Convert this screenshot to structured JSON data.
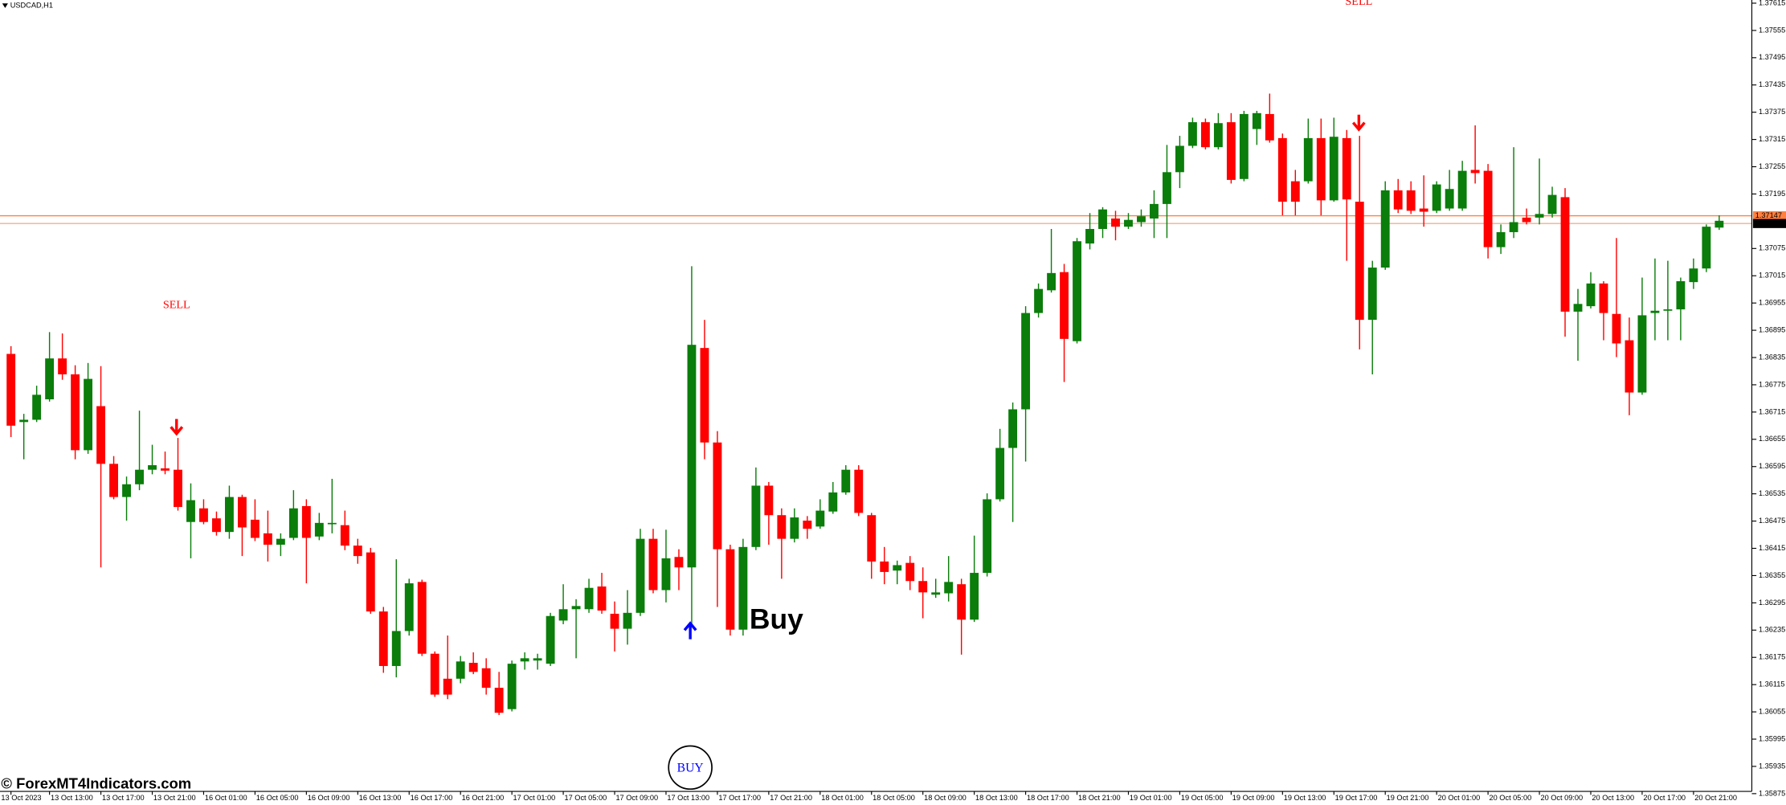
{
  "chart_data": {
    "type": "candlestick",
    "title": "USDCAD,H1",
    "watermark": "© ForexMT4Indicators.com",
    "annotations": [
      "SELL",
      "SELL",
      "Buy",
      "BUY"
    ],
    "up_color": "#0a7d0a",
    "down_color": "#ff0000",
    "grid": false,
    "ylim": [
      1.3588,
      1.37622
    ],
    "yticks": [
      1.37615,
      1.37555,
      1.37495,
      1.37435,
      1.37375,
      1.37315,
      1.37255,
      1.37195,
      1.37075,
      1.37015,
      1.36955,
      1.36895,
      1.36835,
      1.36775,
      1.36715,
      1.36655,
      1.36595,
      1.36535,
      1.36475,
      1.36415,
      1.36355,
      1.36295,
      1.36235,
      1.36175,
      1.36115,
      1.36055,
      1.35995,
      1.35935,
      1.35875
    ],
    "hlines": [
      {
        "value": 1.37147,
        "label": "1.37147",
        "color": "#ff8040"
      },
      {
        "value": 1.3713,
        "label": "1.37130",
        "color": "#f0b090"
      }
    ],
    "categories": [
      "13 Oct 2023",
      null,
      null,
      "13 Oct 13:00",
      null,
      null,
      null,
      "13 Oct 17:00",
      null,
      null,
      null,
      "13 Oct 21:00",
      null,
      null,
      null,
      "16 Oct 01:00",
      null,
      null,
      null,
      "16 Oct 05:00",
      null,
      null,
      null,
      "16 Oct 09:00",
      null,
      null,
      null,
      "16 Oct 13:00",
      null,
      null,
      null,
      "16 Oct 17:00",
      null,
      null,
      null,
      "16 Oct 21:00",
      null,
      null,
      null,
      "17 Oct 01:00",
      null,
      null,
      null,
      "17 Oct 05:00",
      null,
      null,
      null,
      "17 Oct 09:00",
      null,
      null,
      null,
      "17 Oct 13:00",
      null,
      null,
      null,
      "17 Oct 17:00",
      null,
      null,
      null,
      "17 Oct 21:00",
      null,
      null,
      null,
      "18 Oct 01:00",
      null,
      null,
      null,
      "18 Oct 05:00",
      null,
      null,
      null,
      "18 Oct 09:00",
      null,
      null,
      null,
      "18 Oct 13:00",
      null,
      null,
      null,
      "18 Oct 17:00",
      null,
      null,
      null,
      "18 Oct 21:00",
      null,
      null,
      null,
      "19 Oct 01:00",
      null,
      null,
      null,
      "19 Oct 05:00",
      null,
      null,
      null,
      "19 Oct 09:00",
      null,
      null,
      null,
      "19 Oct 13:00",
      null,
      null,
      null,
      "19 Oct 17:00",
      null,
      null,
      null,
      "19 Oct 21:00",
      null,
      null,
      null,
      "20 Oct 01:00",
      null,
      null,
      null,
      "20 Oct 05:00",
      null,
      null,
      null,
      "20 Oct 09:00",
      null,
      null,
      null,
      "20 Oct 13:00",
      null,
      null,
      null,
      "20 Oct 17:00",
      null,
      null,
      null,
      "20 Oct 21:00",
      null,
      null
    ],
    "open": [
      1.36843,
      1.36693,
      1.36698,
      1.36743,
      1.36833,
      1.36798,
      1.36631,
      1.36728,
      1.36601,
      1.36528,
      1.36556,
      1.36588,
      1.36591,
      1.36588,
      1.36473,
      1.36503,
      1.36481,
      1.36451,
      1.36528,
      1.36478,
      1.36448,
      1.36423,
      1.36438,
      1.36508,
      1.36441,
      1.36468,
      1.36466,
      1.36421,
      1.36406,
      1.36276,
      1.36156,
      1.36233,
      1.36341,
      1.36183,
      1.36128,
      1.36128,
      1.36163,
      1.36151,
      1.36108,
      1.36061,
      1.36166,
      1.36168,
      1.36161,
      1.36256,
      1.36281,
      1.36281,
      1.36331,
      1.36271,
      1.36238,
      1.36273,
      1.36436,
      1.36323,
      1.36396,
      1.36373,
      1.36856,
      1.36648,
      1.36413,
      1.36236,
      1.36418,
      1.36553,
      1.36488,
      1.36436,
      1.36476,
      1.36463,
      1.36496,
      1.36538,
      1.36588,
      1.36488,
      1.36386,
      1.36366,
      1.36383,
      1.36343,
      1.36313,
      1.36316,
      1.36336,
      1.36258,
      1.36361,
      1.36523,
      1.36636,
      1.36721,
      1.36933,
      1.36983,
      1.37023,
      1.36871,
      1.37086,
      1.37118,
      1.37141,
      1.37123,
      1.37133,
      1.37141,
      1.37173,
      1.37243,
      1.37301,
      1.37353,
      1.37298,
      1.37353,
      1.37228,
      1.37338,
      1.37371,
      1.37318,
      1.37223,
      1.37223,
      1.37318,
      1.37181,
      1.37318,
      1.37178,
      1.36918,
      1.37033,
      1.37203,
      1.37203,
      1.37163,
      1.37158,
      1.37163,
      1.37163,
      1.37248,
      1.37246,
      1.37078,
      1.37111,
      1.37143,
      1.37143,
      1.37151,
      1.37188,
      1.36936,
      1.36948,
      1.36998,
      1.36931,
      1.36873,
      1.36758,
      1.36933,
      1.36938,
      1.36941,
      1.37001,
      1.37031,
      1.37121
    ],
    "high": [
      1.3686,
      1.36711,
      1.36773,
      1.36891,
      1.36888,
      1.36818,
      1.36823,
      1.36816,
      1.36618,
      1.36573,
      1.36718,
      1.36643,
      1.36628,
      1.36658,
      1.36558,
      1.36523,
      1.36496,
      1.36553,
      1.36533,
      1.36523,
      1.36498,
      1.36448,
      1.36543,
      1.36523,
      1.36493,
      1.36568,
      1.36498,
      1.36436,
      1.36416,
      1.36286,
      1.36391,
      1.36348,
      1.36346,
      1.36188,
      1.36223,
      1.36178,
      1.36186,
      1.36173,
      1.36143,
      1.36168,
      1.36186,
      1.36183,
      1.36273,
      1.36336,
      1.36303,
      1.36348,
      1.36361,
      1.36298,
      1.36323,
      1.36458,
      1.36458,
      1.36456,
      1.36413,
      1.37036,
      1.36918,
      1.36673,
      1.36423,
      1.36436,
      1.36593,
      1.36561,
      1.36503,
      1.36503,
      1.36486,
      1.36523,
      1.36561,
      1.36598,
      1.36598,
      1.36493,
      1.36418,
      1.36388,
      1.36398,
      1.36373,
      1.36348,
      1.36398,
      1.36348,
      1.36443,
      1.36536,
      1.36678,
      1.36736,
      1.36948,
      1.36998,
      1.37118,
      1.37041,
      1.37098,
      1.37153,
      1.37166,
      1.37158,
      1.37153,
      1.37161,
      1.37203,
      1.37303,
      1.37323,
      1.37363,
      1.37361,
      1.37373,
      1.37373,
      1.37378,
      1.37378,
      1.37416,
      1.37328,
      1.37248,
      1.37361,
      1.37361,
      1.37363,
      1.37336,
      1.37323,
      1.37048,
      1.37223,
      1.37228,
      1.37223,
      1.37236,
      1.37223,
      1.37248,
      1.37268,
      1.37346,
      1.37261,
      1.37128,
      1.37298,
      1.37163,
      1.37273,
      1.37211,
      1.37208,
      1.36986,
      1.37023,
      1.37003,
      1.37098,
      1.36923,
      1.37011,
      1.37053,
      1.37048,
      1.37011,
      1.37053,
      1.37128,
      1.37148
    ],
    "low": [
      1.3666,
      1.36611,
      1.36693,
      1.36738,
      1.36786,
      1.36611,
      1.36623,
      1.36373,
      1.36523,
      1.36476,
      1.36543,
      1.36578,
      1.36578,
      1.36498,
      1.36393,
      1.36468,
      1.36443,
      1.36436,
      1.36398,
      1.36431,
      1.36386,
      1.36398,
      1.36433,
      1.36338,
      1.36433,
      1.36448,
      1.36411,
      1.36381,
      1.36271,
      1.36141,
      1.36131,
      1.36223,
      1.36178,
      1.36088,
      1.36083,
      1.36118,
      1.36138,
      1.36093,
      1.36048,
      1.36056,
      1.36148,
      1.36148,
      1.36156,
      1.36248,
      1.36173,
      1.36273,
      1.36271,
      1.36188,
      1.36203,
      1.36266,
      1.36316,
      1.36296,
      1.36323,
      1.36248,
      1.36611,
      1.36286,
      1.36223,
      1.36223,
      1.36411,
      1.36423,
      1.36348,
      1.36428,
      1.36436,
      1.36458,
      1.36491,
      1.36533,
      1.36486,
      1.36348,
      1.36336,
      1.36336,
      1.36323,
      1.36261,
      1.36306,
      1.36298,
      1.36181,
      1.36253,
      1.36353,
      1.36518,
      1.36473,
      1.36606,
      1.36923,
      1.36978,
      1.36781,
      1.36866,
      1.37073,
      1.37098,
      1.37093,
      1.37118,
      1.37123,
      1.37098,
      1.37098,
      1.37208,
      1.37296,
      1.37293,
      1.37293,
      1.37218,
      1.37223,
      1.37303,
      1.37308,
      1.37148,
      1.37148,
      1.37218,
      1.37148,
      1.37178,
      1.37048,
      1.36853,
      1.36798,
      1.37028,
      1.37153,
      1.37151,
      1.37123,
      1.37153,
      1.37158,
      1.37158,
      1.37218,
      1.37053,
      1.37063,
      1.37098,
      1.37128,
      1.37128,
      1.37143,
      1.36881,
      1.36828,
      1.36943,
      1.36873,
      1.36836,
      1.36708,
      1.36753,
      1.36873,
      1.36873,
      1.36873,
      1.36986,
      1.37023,
      1.37116
    ],
    "close": [
      1.36685,
      1.36698,
      1.36753,
      1.36833,
      1.36798,
      1.36631,
      1.36788,
      1.36601,
      1.36528,
      1.36556,
      1.36588,
      1.36598,
      1.36586,
      1.36506,
      1.36521,
      1.36473,
      1.36451,
      1.36528,
      1.36461,
      1.36438,
      1.36423,
      1.36436,
      1.36503,
      1.36438,
      1.36471,
      1.36471,
      1.36421,
      1.36398,
      1.36276,
      1.36156,
      1.36233,
      1.36338,
      1.36183,
      1.36093,
      1.36093,
      1.36166,
      1.36143,
      1.36108,
      1.36053,
      1.36161,
      1.36173,
      1.36173,
      1.36266,
      1.36281,
      1.36288,
      1.36328,
      1.36278,
      1.36238,
      1.36273,
      1.36436,
      1.36323,
      1.36393,
      1.36373,
      1.36863,
      1.36648,
      1.36413,
      1.36236,
      1.36418,
      1.36553,
      1.36488,
      1.36436,
      1.36483,
      1.36458,
      1.36498,
      1.36538,
      1.36588,
      1.36493,
      1.36386,
      1.36363,
      1.36378,
      1.36343,
      1.36318,
      1.36318,
      1.36341,
      1.36258,
      1.36361,
      1.36523,
      1.36636,
      1.36721,
      1.36933,
      1.36986,
      1.37021,
      1.36876,
      1.37091,
      1.37118,
      1.37161,
      1.37123,
      1.37138,
      1.37146,
      1.37173,
      1.37243,
      1.37301,
      1.37353,
      1.37298,
      1.37351,
      1.37226,
      1.37371,
      1.37373,
      1.37313,
      1.37178,
      1.37178,
      1.37318,
      1.37181,
      1.37321,
      1.37183,
      1.36918,
      1.37033,
      1.37203,
      1.37161,
      1.37158,
      1.37156,
      1.37216,
      1.37206,
      1.37246,
      1.37241,
      1.37078,
      1.37111,
      1.37133,
      1.37133,
      1.37151,
      1.37193,
      1.36936,
      1.36953,
      1.36998,
      1.36933,
      1.36866,
      1.36758,
      1.36928,
      1.36938,
      1.36941,
      1.37003,
      1.37031,
      1.37123,
      1.37136
    ]
  }
}
